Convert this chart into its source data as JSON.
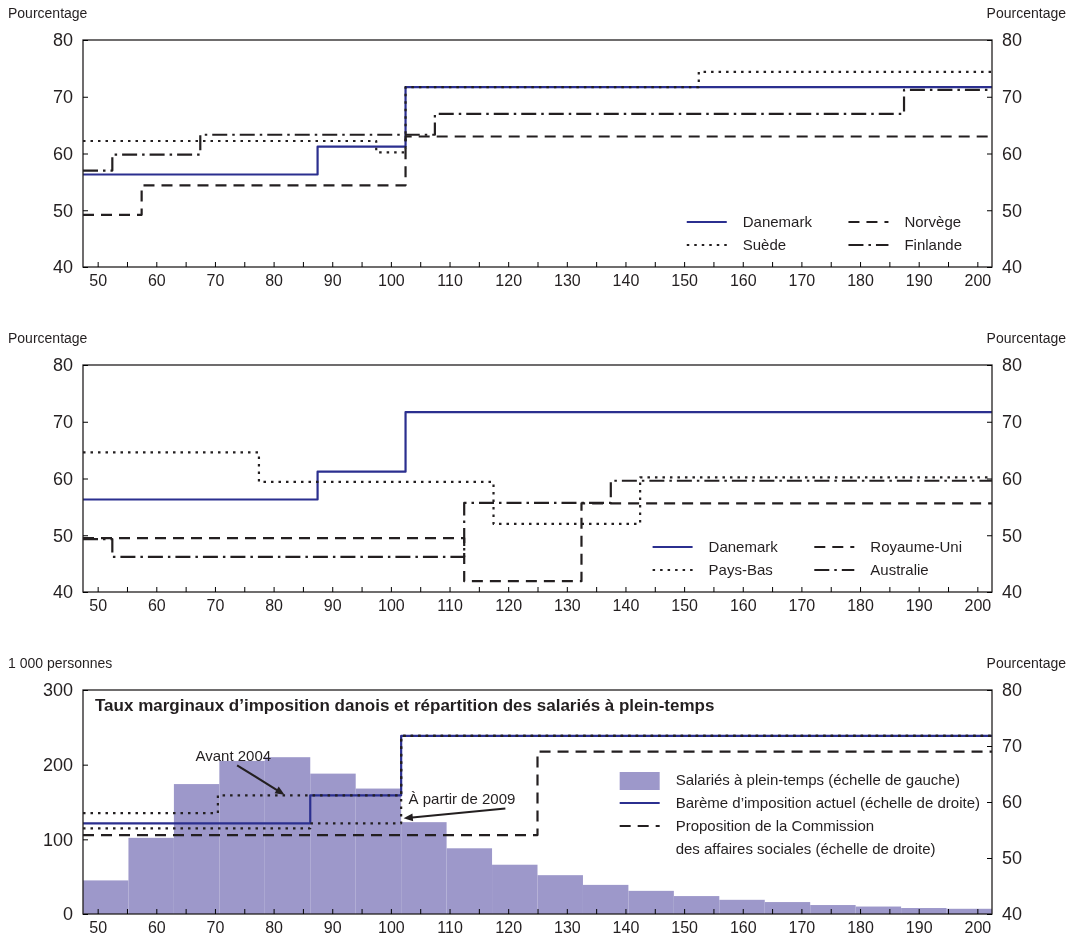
{
  "chart_data": [
    {
      "type": "step",
      "ylabel": "Pourcentage",
      "y2label": "Pourcentage",
      "xlim": [
        47.5,
        202.5
      ],
      "ylim": [
        40,
        80
      ],
      "y2lim": [
        40,
        80
      ],
      "xticks": [
        50,
        {
          "value": 55,
          "label": null
        },
        60,
        {
          "value": 65,
          "label": null
        },
        70,
        {
          "value": 75,
          "label": null
        },
        80,
        {
          "value": 85,
          "label": null
        },
        90,
        {
          "value": 95,
          "label": null
        },
        100,
        {
          "value": 105,
          "label": null
        },
        110,
        {
          "value": 115,
          "label": null
        },
        120,
        {
          "value": 125,
          "label": null
        },
        130,
        {
          "value": 135,
          "label": null
        },
        140,
        {
          "value": 145,
          "label": null
        },
        150,
        {
          "value": 155,
          "label": null
        },
        160,
        {
          "value": 165,
          "label": null
        },
        170,
        {
          "value": 175,
          "label": null
        },
        180,
        {
          "value": 185,
          "label": null
        },
        190,
        {
          "value": 195,
          "label": null
        },
        200
      ],
      "yticks": [
        40,
        50,
        60,
        70,
        80
      ],
      "y2ticks": [
        40,
        50,
        60,
        70,
        80
      ],
      "legend": "bottom right",
      "series": [
        {
          "name": "Danemark",
          "color": "#2b2f8f",
          "line_style": "solid",
          "x": [
            47.5,
            87.5,
            102.5,
            202.5
          ],
          "values": [
            56.3,
            61.2,
            71.7,
            71.7
          ]
        },
        {
          "name": "Suède",
          "color": "#231f20",
          "line_style": "dotted",
          "x": [
            47.5,
            97.5,
            102.5,
            152.5,
            202.5
          ],
          "values": [
            62.2,
            60.2,
            71.7,
            74.4,
            74.4
          ]
        },
        {
          "name": "Norvège",
          "color": "#231f20",
          "line_style": "dashed",
          "x": [
            47.5,
            57.5,
            102.5,
            202.5
          ],
          "values": [
            49.2,
            54.4,
            63.0,
            63.0
          ]
        },
        {
          "name": "Finlande",
          "color": "#231f20",
          "line_style": "dashdot",
          "x": [
            47.5,
            52.5,
            67.5,
            107.5,
            187.5,
            202.5
          ],
          "values": [
            57.0,
            59.8,
            63.3,
            67.0,
            71.2,
            71.2
          ]
        }
      ]
    },
    {
      "type": "step",
      "ylabel": "Pourcentage",
      "y2label": "Pourcentage",
      "xlim": [
        47.5,
        202.5
      ],
      "ylim": [
        40,
        80
      ],
      "y2lim": [
        40,
        80
      ],
      "xticks": [
        50,
        {
          "value": 55,
          "label": null
        },
        60,
        {
          "value": 65,
          "label": null
        },
        70,
        {
          "value": 75,
          "label": null
        },
        80,
        {
          "value": 85,
          "label": null
        },
        90,
        {
          "value": 95,
          "label": null
        },
        100,
        {
          "value": 105,
          "label": null
        },
        110,
        {
          "value": 115,
          "label": null
        },
        120,
        {
          "value": 125,
          "label": null
        },
        130,
        {
          "value": 135,
          "label": null
        },
        140,
        {
          "value": 145,
          "label": null
        },
        150,
        {
          "value": 155,
          "label": null
        },
        160,
        {
          "value": 165,
          "label": null
        },
        170,
        {
          "value": 175,
          "label": null
        },
        180,
        {
          "value": 185,
          "label": null
        },
        190,
        {
          "value": 195,
          "label": null
        },
        200
      ],
      "yticks": [
        40,
        50,
        60,
        70,
        80
      ],
      "y2ticks": [
        40,
        50,
        60,
        70,
        80
      ],
      "legend": "bottom right",
      "series": [
        {
          "name": "Danemark",
          "color": "#2b2f8f",
          "line_style": "solid",
          "x": [
            47.5,
            87.5,
            102.5,
            202.5
          ],
          "values": [
            56.3,
            61.2,
            71.7,
            71.7
          ]
        },
        {
          "name": "Pays-Bas",
          "color": "#231f20",
          "line_style": "dotted",
          "x": [
            47.5,
            77.5,
            117.5,
            142.5,
            202.5
          ],
          "values": [
            64.6,
            59.4,
            52.0,
            60.2,
            60.2
          ]
        },
        {
          "name": "Royaume-Uni",
          "color": "#231f20",
          "line_style": "dashed",
          "x": [
            47.5,
            112.5,
            132.5,
            202.5
          ],
          "values": [
            49.5,
            41.9,
            55.6,
            55.6
          ]
        },
        {
          "name": "Australie",
          "color": "#231f20",
          "line_style": "dashdot",
          "x": [
            47.5,
            52.5,
            112.5,
            137.5,
            202.5
          ],
          "values": [
            49.3,
            46.2,
            55.7,
            59.6,
            59.6
          ]
        }
      ]
    },
    {
      "type": "step",
      "title": "Taux marginaux d’imposition danois et répartition des salariés à plein-temps",
      "ylabel": "1 000 personnes",
      "y2label": "Pourcentage",
      "xlim": [
        47.5,
        202.5
      ],
      "ylim": [
        0,
        300
      ],
      "y2lim": [
        40,
        80
      ],
      "xticks": [
        50,
        {
          "value": 55,
          "label": null
        },
        60,
        {
          "value": 65,
          "label": null
        },
        70,
        {
          "value": 75,
          "label": null
        },
        80,
        {
          "value": 85,
          "label": null
        },
        90,
        {
          "value": 95,
          "label": null
        },
        100,
        {
          "value": 105,
          "label": null
        },
        110,
        {
          "value": 115,
          "label": null
        },
        120,
        {
          "value": 125,
          "label": null
        },
        130,
        {
          "value": 135,
          "label": null
        },
        140,
        {
          "value": 145,
          "label": null
        },
        150,
        {
          "value": 155,
          "label": null
        },
        160,
        {
          "value": 165,
          "label": null
        },
        170,
        {
          "value": 175,
          "label": null
        },
        180,
        {
          "value": 185,
          "label": null
        },
        190,
        {
          "value": 195,
          "label": null
        },
        200
      ],
      "yticks": [
        0,
        100,
        200,
        300
      ],
      "y2ticks": [
        40,
        50,
        60,
        70,
        80
      ],
      "legend": "right",
      "annotations": [
        {
          "text": "Avant 2004",
          "x": 82,
          "y": 159
        },
        {
          "text": "À partir de 2009",
          "x": 102,
          "y": 128
        }
      ],
      "series": [
        {
          "type": "histogram",
          "name": "Salariés à plein-temps (échelle de gauche)",
          "color": "#9d98ca",
          "bins": [
            47.5,
            55.25,
            63,
            70.75,
            78.5,
            86.25,
            94,
            101.75,
            109.5,
            117.25,
            125,
            132.75,
            140.5,
            148.25,
            156,
            163.75,
            171.5,
            179.25,
            187,
            194.75,
            202.5
          ],
          "values": [
            45,
            102,
            174,
            205,
            210,
            188,
            168,
            123,
            88,
            66,
            52,
            39,
            31,
            24,
            19,
            16,
            12,
            10,
            8,
            7
          ]
        },
        {
          "name": "Barème d’imposition actuel (échelle de droite)",
          "color": "#2b2f8f",
          "line_style": "solid",
          "axis": "y2",
          "x": [
            47.5,
            86.25,
            101.75,
            202.5
          ],
          "values": [
            56.2,
            61.2,
            71.8,
            71.8
          ]
        },
        {
          "name": "Proposition de la Commission\ndes affaires sociales (échelle de droite)",
          "color": "#231f20",
          "line_style": "dashed",
          "axis": "y2",
          "x": [
            47.5,
            125,
            202.5
          ],
          "values": [
            54.1,
            69.0,
            69.0
          ]
        },
        {
          "color": "#231f20",
          "line_style": "dotted",
          "axis": "y2",
          "x": [
            47.5,
            70.5,
            101.75,
            202.5
          ],
          "values": [
            58.0,
            61.2,
            71.8,
            71.8
          ]
        },
        {
          "color": "#231f20",
          "line_style": "dotted",
          "axis": "y2",
          "x": [
            47.5,
            86.25,
            101.75,
            202.5
          ],
          "values": [
            55.3,
            56.2,
            71.8,
            71.8
          ]
        }
      ]
    }
  ]
}
